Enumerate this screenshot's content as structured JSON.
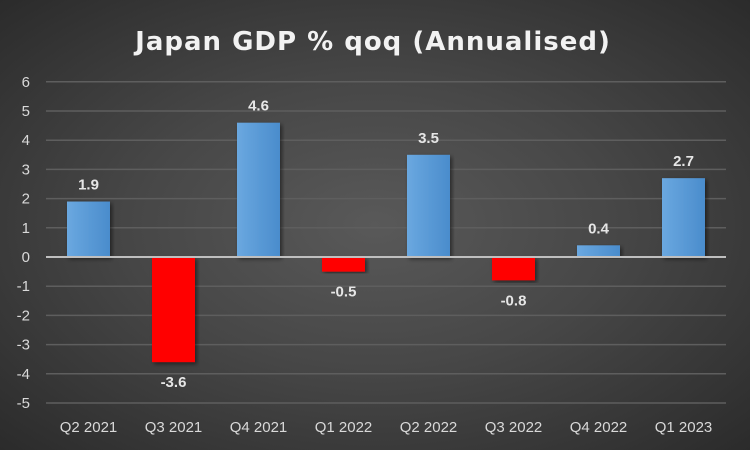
{
  "chart_data": {
    "type": "bar",
    "title": "Japan GDP % qoq (Annualised)",
    "categories": [
      "Q2 2021",
      "Q3 2021",
      "Q4 2021",
      "Q1 2022",
      "Q2 2022",
      "Q3 2022",
      "Q4 2022",
      "Q1 2023"
    ],
    "values": [
      1.9,
      -3.6,
      4.6,
      -0.5,
      3.5,
      -0.8,
      0.4,
      2.7
    ],
    "data_labels": [
      "1.9",
      "-3.6",
      "4.6",
      "-0.5",
      "3.5",
      "-0.8",
      "0.4",
      "2.7"
    ],
    "ylim": [
      -5,
      6
    ],
    "yticks": [
      "6",
      "5",
      "4",
      "3",
      "2",
      "1",
      "0",
      "-1",
      "-2",
      "-3",
      "-4",
      "-5"
    ],
    "xlabel": "",
    "ylabel": "",
    "grid": true,
    "legend": "none",
    "colors": {
      "positive": "#5b9bd5",
      "negative": "#ff0000",
      "grid": "#5e5e5e",
      "zero_line": "#bfbfbf"
    }
  }
}
